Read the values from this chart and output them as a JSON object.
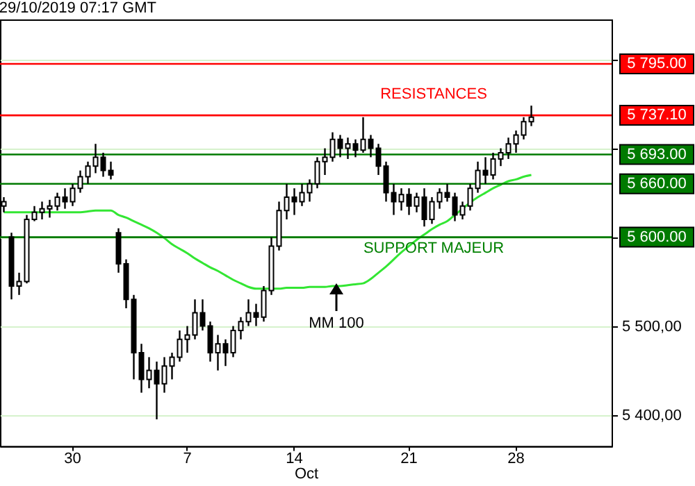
{
  "chart_data": {
    "type": "candlestick",
    "title": "29/10/2019 07:17 GMT",
    "xlabel": "Oct",
    "categories": [
      null,
      null,
      null,
      null,
      null,
      null,
      null,
      null,
      null,
      "30",
      null,
      null,
      null,
      null,
      null,
      null,
      null,
      null,
      null,
      null,
      null,
      null,
      null,
      null,
      "7",
      null,
      null,
      null,
      null,
      null,
      null,
      null,
      null,
      null,
      null,
      null,
      null,
      null,
      "14",
      null,
      null,
      null,
      null,
      null,
      null,
      null,
      null,
      null,
      null,
      null,
      null,
      null,
      null,
      "21",
      null,
      null,
      null,
      null,
      null,
      null,
      null,
      null,
      null,
      null,
      null,
      null,
      null,
      "28",
      null,
      null,
      null,
      null,
      null,
      null,
      null,
      null,
      null,
      null,
      null,
      null
    ],
    "ohlc": [
      [
        5635,
        5645,
        5628,
        5640
      ],
      [
        5600,
        5605,
        5530,
        5545
      ],
      [
        5545,
        5560,
        5535,
        5550
      ],
      [
        5550,
        5625,
        5548,
        5620
      ],
      [
        5620,
        5635,
        5618,
        5628
      ],
      [
        5628,
        5640,
        5620,
        5632
      ],
      [
        5632,
        5642,
        5622,
        5635
      ],
      [
        5635,
        5650,
        5630,
        5645
      ],
      [
        5645,
        5655,
        5632,
        5640
      ],
      [
        5640,
        5660,
        5635,
        5655
      ],
      [
        5655,
        5675,
        5650,
        5668
      ],
      [
        5668,
        5685,
        5660,
        5680
      ],
      [
        5680,
        5705,
        5672,
        5690
      ],
      [
        5690,
        5695,
        5668,
        5675
      ],
      [
        5675,
        5685,
        5665,
        5670
      ],
      [
        5605,
        5610,
        5560,
        5570
      ],
      [
        5570,
        5575,
        5520,
        5530
      ],
      [
        5530,
        5535,
        5440,
        5470
      ],
      [
        5470,
        5480,
        5425,
        5440
      ],
      [
        5440,
        5465,
        5430,
        5450
      ],
      [
        5450,
        5460,
        5395,
        5435
      ],
      [
        5435,
        5465,
        5425,
        5455
      ],
      [
        5455,
        5470,
        5440,
        5465
      ],
      [
        5465,
        5495,
        5460,
        5485
      ],
      [
        5485,
        5500,
        5470,
        5490
      ],
      [
        5490,
        5530,
        5485,
        5515
      ],
      [
        5515,
        5530,
        5495,
        5500
      ],
      [
        5500,
        5505,
        5460,
        5470
      ],
      [
        5470,
        5490,
        5450,
        5480
      ],
      [
        5480,
        5485,
        5455,
        5470
      ],
      [
        5470,
        5500,
        5465,
        5495
      ],
      [
        5495,
        5510,
        5485,
        5505
      ],
      [
        5505,
        5530,
        5500,
        5515
      ],
      [
        5515,
        5525,
        5500,
        5510
      ],
      [
        5510,
        5545,
        5505,
        5540
      ],
      [
        5540,
        5600,
        5535,
        5590
      ],
      [
        5590,
        5640,
        5585,
        5630
      ],
      [
        5630,
        5660,
        5620,
        5645
      ],
      [
        5645,
        5655,
        5625,
        5640
      ],
      [
        5640,
        5660,
        5635,
        5650
      ],
      [
        5650,
        5665,
        5640,
        5660
      ],
      [
        5660,
        5690,
        5655,
        5685
      ],
      [
        5685,
        5700,
        5670,
        5690
      ],
      [
        5690,
        5718,
        5685,
        5710
      ],
      [
        5710,
        5715,
        5690,
        5700
      ],
      [
        5700,
        5712,
        5688,
        5705
      ],
      [
        5705,
        5710,
        5690,
        5698
      ],
      [
        5698,
        5735,
        5695,
        5710
      ],
      [
        5710,
        5715,
        5690,
        5700
      ],
      [
        5700,
        5705,
        5670,
        5680
      ],
      [
        5680,
        5685,
        5640,
        5650
      ],
      [
        5650,
        5660,
        5625,
        5640
      ],
      [
        5640,
        5655,
        5630,
        5648
      ],
      [
        5648,
        5655,
        5625,
        5635
      ],
      [
        5635,
        5650,
        5628,
        5645
      ],
      [
        5645,
        5655,
        5612,
        5620
      ],
      [
        5620,
        5645,
        5615,
        5640
      ],
      [
        5640,
        5655,
        5632,
        5650
      ],
      [
        5650,
        5660,
        5640,
        5645
      ],
      [
        5645,
        5650,
        5618,
        5625
      ],
      [
        5625,
        5640,
        5620,
        5635
      ],
      [
        5635,
        5660,
        5630,
        5655
      ],
      [
        5655,
        5685,
        5650,
        5675
      ],
      [
        5675,
        5690,
        5660,
        5670
      ],
      [
        5670,
        5695,
        5665,
        5688
      ],
      [
        5688,
        5700,
        5680,
        5695
      ],
      [
        5695,
        5712,
        5688,
        5705
      ],
      [
        5705,
        5720,
        5695,
        5715
      ],
      [
        5715,
        5735,
        5710,
        5730
      ],
      [
        5730,
        5748,
        5725,
        5735
      ],
      null,
      null,
      null,
      null,
      null,
      null,
      null,
      null,
      null,
      null
    ],
    "series": [
      {
        "type": "line",
        "color": "#33e633",
        "values": [
          5628,
          5628,
          5628,
          5628,
          5628,
          5628,
          5628,
          5628,
          5628,
          5628,
          5628,
          5629,
          5630,
          5630,
          5630,
          5625,
          5622,
          5618,
          5614,
          5610,
          5605,
          5599,
          5592,
          5587,
          5582,
          5576,
          5571,
          5566,
          5562,
          5557,
          5552,
          5548,
          5544,
          5542,
          5542,
          5542,
          5542,
          5543,
          5543,
          5543,
          5544,
          5544,
          5544,
          5545,
          5545,
          5546,
          5547,
          5548,
          5553,
          5560,
          5567,
          5575,
          5583,
          5590,
          5597,
          5603,
          5609,
          5614,
          5618,
          5625,
          5632,
          5639,
          5645,
          5650,
          5655,
          5659,
          5663,
          5665,
          5668,
          5670,
          null,
          null,
          null,
          null,
          null,
          null,
          null,
          null,
          null,
          null
        ]
      }
    ],
    "ylim": [
      5365,
      5845
    ],
    "yticks": [
      {
        "value": 5400,
        "label": "5 400,00"
      },
      {
        "value": 5500,
        "label": "5 500,00"
      },
      {
        "value": 5600,
        "label": null
      },
      {
        "value": 5700,
        "label": null
      },
      {
        "value": 5800,
        "label": null
      }
    ],
    "grid": "y",
    "ref_lines": [
      {
        "axis": "y",
        "value": 5795,
        "label": "5 795.00",
        "color": "#ff0000"
      },
      {
        "axis": "y",
        "value": 5737.1,
        "label": "5 737.10",
        "color": "#ff0000"
      },
      {
        "axis": "y",
        "value": 5693,
        "label": "5 693.00",
        "color": "#007a00"
      },
      {
        "axis": "y",
        "value": 5660,
        "label": "5 660.00",
        "color": "#007a00"
      },
      {
        "axis": "y",
        "value": 5600,
        "label": "5 600.00",
        "color": "#007a00"
      }
    ],
    "annotations": [
      "RESISTANCES",
      "SUPPORT MAJEUR",
      "MM 100"
    ]
  }
}
